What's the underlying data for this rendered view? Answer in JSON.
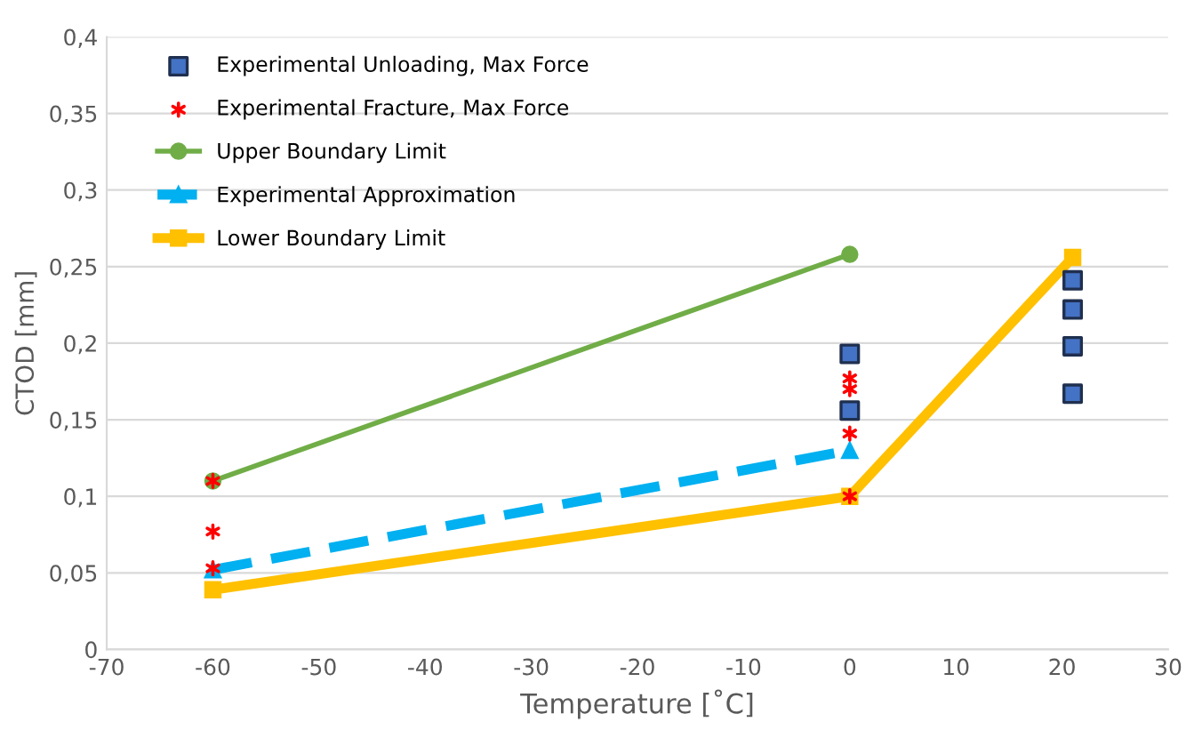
{
  "chart_data": {
    "type": "scatter",
    "xlabel": "Temperature [˚C]",
    "ylabel": "CTOD [mm]",
    "xlim": [
      -70,
      30
    ],
    "xticks": [
      -70,
      -60,
      -50,
      -40,
      -30,
      -20,
      -10,
      0,
      10,
      20,
      30
    ],
    "ylim": [
      0,
      0.4
    ],
    "yticks": [
      0,
      {
        "value": 0.05,
        "label": "0,05"
      },
      {
        "value": 0.1,
        "label": "0,1"
      },
      {
        "value": 0.15,
        "label": "0,15"
      },
      {
        "value": 0.2,
        "label": "0,2"
      },
      {
        "value": 0.25,
        "label": "0,25"
      },
      {
        "value": 0.3,
        "label": "0,3"
      },
      {
        "value": 0.35,
        "label": "0,35"
      },
      {
        "value": 0.4,
        "label": "0,4"
      }
    ],
    "grid": "y",
    "legend": "top left",
    "series": [
      {
        "name": "Experimental Unloading, Max Force",
        "marker": "square",
        "color": "#4472c4",
        "x": [
          0,
          0,
          21,
          21,
          21,
          21
        ],
        "values": [
          0.193,
          0.156,
          0.241,
          0.222,
          0.198,
          0.167
        ]
      },
      {
        "name": "Experimental Fracture, Max Force",
        "marker": "cross",
        "color": "#ff0000",
        "x": [
          -60,
          -60,
          -60,
          0,
          0,
          0,
          0
        ],
        "values": [
          0.11,
          0.077,
          0.053,
          0.177,
          0.17,
          0.141,
          0.1
        ]
      },
      {
        "name": "Upper Boundary Limit",
        "type": "line",
        "marker": "circle",
        "line_style": "solid",
        "color": "#70ad47",
        "x": [
          -60,
          0
        ],
        "values": [
          0.11,
          0.258
        ]
      },
      {
        "name": "Experimental Approximation",
        "type": "line",
        "marker": "triangle",
        "line_style": "dashed",
        "color": "#00b0f0",
        "x": [
          -60,
          0
        ],
        "values": [
          0.052,
          0.13
        ]
      },
      {
        "name": "Lower Boundary Limit",
        "type": "line",
        "marker": "square",
        "line_style": "solid",
        "color": "#ffc000",
        "x": [
          -60,
          0,
          21
        ],
        "values": [
          0.039,
          0.1,
          0.256
        ]
      }
    ]
  }
}
